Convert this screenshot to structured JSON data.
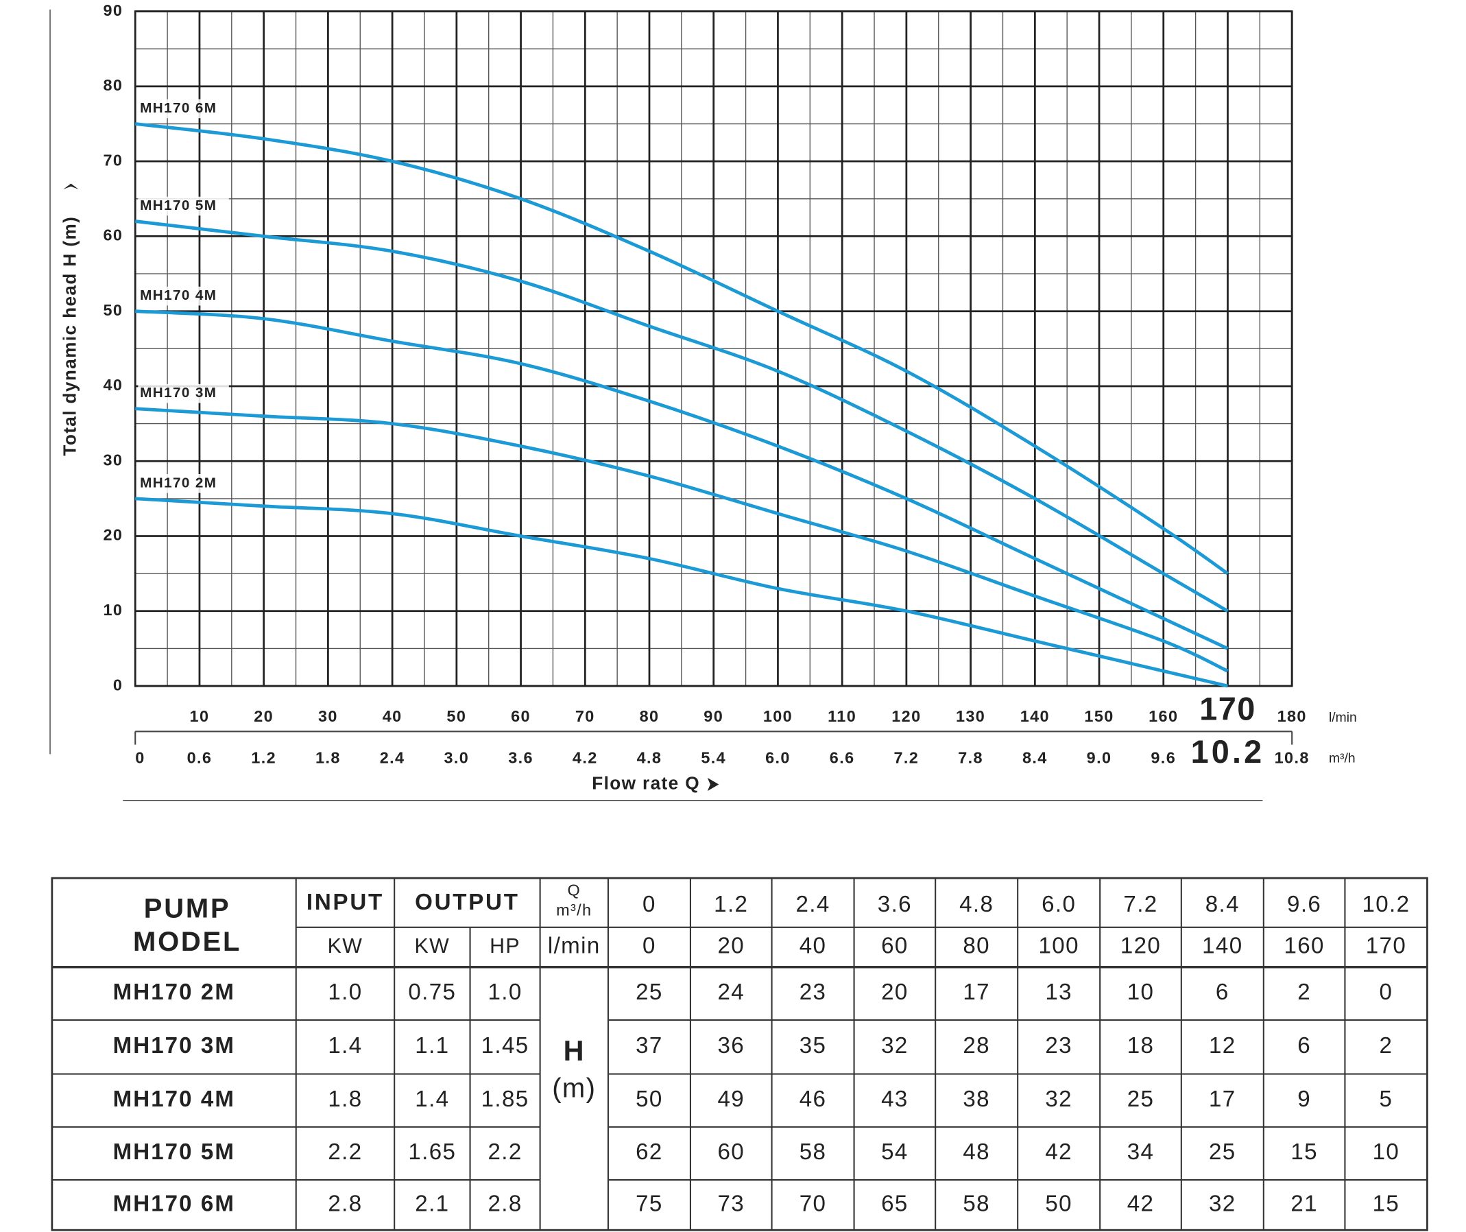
{
  "chart_data": {
    "type": "line",
    "y_label": "Total dynamic head H (m)",
    "x_label": "Flow rate Q",
    "x_unit": "l/min",
    "x2_unit": "m³/h",
    "x": [
      0,
      20,
      40,
      60,
      80,
      100,
      120,
      140,
      160,
      170
    ],
    "series": [
      {
        "name": "MH170 6M",
        "color": "#1b9ad6",
        "values": [
          75,
          73,
          70,
          65,
          58,
          50,
          42,
          32,
          21,
          15
        ]
      },
      {
        "name": "MH170 5M",
        "color": "#1b9ad6",
        "values": [
          62,
          60,
          58,
          54,
          48,
          42,
          34,
          25,
          15,
          10
        ]
      },
      {
        "name": "MH170 4M",
        "color": "#1b9ad6",
        "values": [
          50,
          49,
          46,
          43,
          38,
          32,
          25,
          17,
          9,
          5
        ]
      },
      {
        "name": "MH170 3M",
        "color": "#1b9ad6",
        "values": [
          37,
          36,
          35,
          32,
          28,
          23,
          18,
          12,
          6,
          2
        ]
      },
      {
        "name": "MH170 2M",
        "color": "#1b9ad6",
        "values": [
          25,
          24,
          23,
          20,
          17,
          13,
          10,
          6,
          2,
          0
        ]
      }
    ],
    "xlim": [
      0,
      180
    ],
    "xticks": [
      10,
      20,
      30,
      40,
      50,
      60,
      70,
      80,
      90,
      100,
      110,
      120,
      130,
      140,
      150,
      160,
      170,
      180
    ],
    "x2lim": [
      0,
      10.8
    ],
    "x2ticks": [
      0,
      0.6,
      1.2,
      1.8,
      2.4,
      {
        "value": 3,
        "label": "3.0"
      },
      3.6,
      4.2,
      4.8,
      5.4,
      {
        "value": 6,
        "label": "6.0"
      },
      6.6,
      7.2,
      7.8,
      8.4,
      {
        "value": 9,
        "label": "9.0"
      },
      9.6,
      10.2,
      10.8
    ],
    "ylim": [
      0,
      90
    ],
    "yticks": [
      0,
      10,
      20,
      30,
      40,
      50,
      60,
      70,
      80,
      90
    ],
    "highlight_x": 170,
    "highlight_x2": 10.2,
    "grid": true
  },
  "table": {
    "header": {
      "model": [
        "PUMP",
        "MODEL"
      ],
      "input": "INPUT",
      "output": "OUTPUT",
      "q": "Q",
      "q_unit_m3h": "m³/h",
      "input_unit": "KW",
      "output_units": [
        "KW",
        "HP"
      ],
      "q_unit_lmin": "l/min",
      "q_m3h": [
        "0",
        "1.2",
        "2.4",
        "3.6",
        "4.8",
        "6.0",
        "7.2",
        "8.4",
        "9.6",
        "10.2"
      ],
      "q_lmin": [
        "0",
        "20",
        "40",
        "60",
        "80",
        "100",
        "120",
        "140",
        "160",
        "170"
      ]
    },
    "h_label": "H",
    "h_unit": "(m)",
    "rows": [
      {
        "model": "MH170 2M",
        "input_kw": "1.0",
        "output_kw": "0.75",
        "output_hp": "1.0",
        "h": [
          "25",
          "24",
          "23",
          "20",
          "17",
          "13",
          "10",
          "6",
          "2",
          "0"
        ]
      },
      {
        "model": "MH170 3M",
        "input_kw": "1.4",
        "output_kw": "1.1",
        "output_hp": "1.45",
        "h": [
          "37",
          "36",
          "35",
          "32",
          "28",
          "23",
          "18",
          "12",
          "6",
          "2"
        ]
      },
      {
        "model": "MH170 4M",
        "input_kw": "1.8",
        "output_kw": "1.4",
        "output_hp": "1.85",
        "h": [
          "50",
          "49",
          "46",
          "43",
          "38",
          "32",
          "25",
          "17",
          "9",
          "5"
        ]
      },
      {
        "model": "MH170 5M",
        "input_kw": "2.2",
        "output_kw": "1.65",
        "output_hp": "2.2",
        "h": [
          "62",
          "60",
          "58",
          "54",
          "48",
          "42",
          "34",
          "25",
          "15",
          "10"
        ]
      },
      {
        "model": "MH170 6M",
        "input_kw": "2.8",
        "output_kw": "2.1",
        "output_hp": "2.8",
        "h": [
          "75",
          "73",
          "70",
          "65",
          "58",
          "50",
          "42",
          "32",
          "21",
          "15"
        ]
      }
    ]
  }
}
